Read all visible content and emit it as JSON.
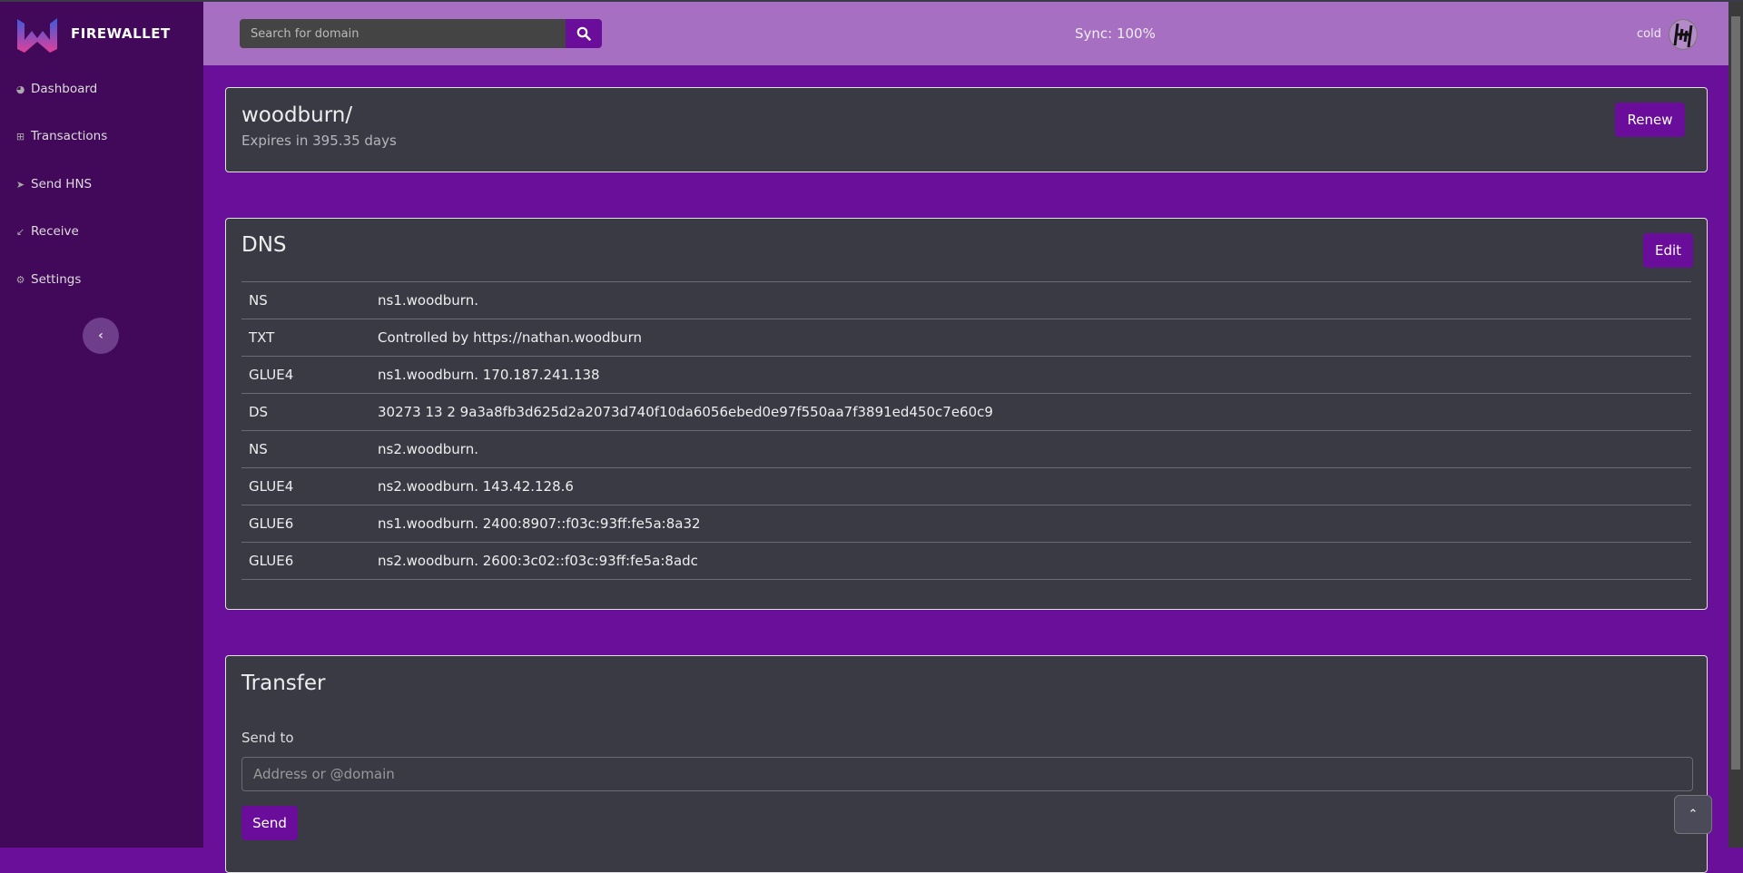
{
  "app": {
    "brand": "FIREWALLET"
  },
  "sidebar": {
    "items": [
      {
        "label": "Dashboard",
        "icon": "dashboard-icon"
      },
      {
        "label": "Transactions",
        "icon": "table-icon"
      },
      {
        "label": "Send HNS",
        "icon": "send-icon"
      },
      {
        "label": "Receive",
        "icon": "receive-icon"
      },
      {
        "label": "Settings",
        "icon": "gear-icon"
      }
    ]
  },
  "header": {
    "search_placeholder": "Search for domain",
    "sync": "Sync: 100%",
    "wallet": "cold"
  },
  "domain": {
    "name": "woodburn/",
    "expires": "Expires in 395.35 days",
    "renew_label": "Renew"
  },
  "dns": {
    "title": "DNS",
    "edit_label": "Edit",
    "records": [
      {
        "type": "NS",
        "value": "ns1.woodburn."
      },
      {
        "type": "TXT",
        "value": "Controlled by https://nathan.woodburn"
      },
      {
        "type": "GLUE4",
        "value": "ns1.woodburn. 170.187.241.138"
      },
      {
        "type": "DS",
        "value": "30273 13 2 9a3a8fb3d625d2a2073d740f10da6056ebed0e97f550aa7f3891ed450c7e60c9"
      },
      {
        "type": "NS",
        "value": "ns2.woodburn."
      },
      {
        "type": "GLUE4",
        "value": "ns2.woodburn. 143.42.128.6"
      },
      {
        "type": "GLUE6",
        "value": "ns1.woodburn. 2400:8907::f03c:93ff:fe5a:8a32"
      },
      {
        "type": "GLUE6",
        "value": "ns2.woodburn. 2600:3c02::f03c:93ff:fe5a:8adc"
      }
    ]
  },
  "transfer": {
    "title": "Transfer",
    "send_to_label": "Send to",
    "input_placeholder": "Address or @domain",
    "input_value": "",
    "send_label": "Send"
  },
  "colors": {
    "sidebar": "#42085a",
    "header": "#a76fc2",
    "main": "#6a0f9a",
    "card": "#3a3a45",
    "accent": "#6a0d9a"
  }
}
